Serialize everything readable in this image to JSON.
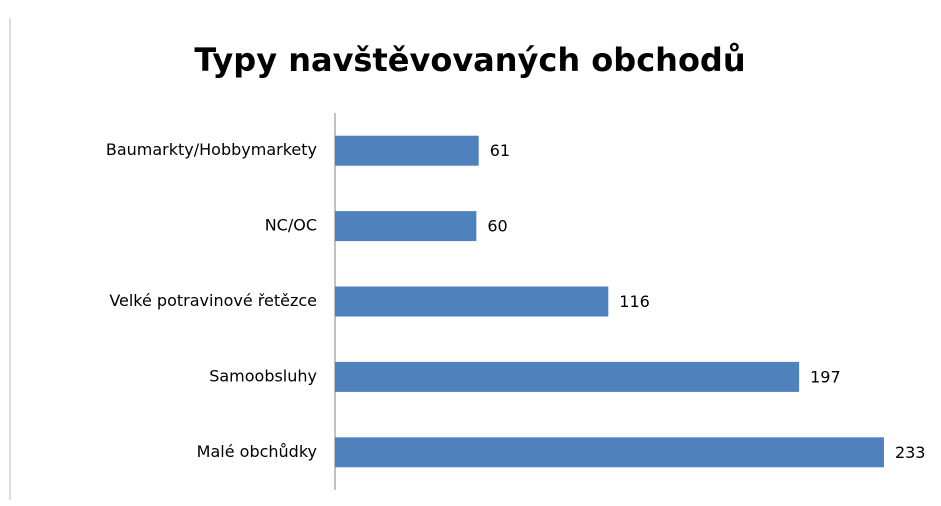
{
  "chart_data": {
    "type": "bar",
    "orientation": "horizontal",
    "title": "Typy navštěvovaných obchodů",
    "categories": [
      "Baumarkty/Hobbymarkety",
      "NC/OC",
      "Velké potravinové řetězce",
      "Samoobsluhy",
      "Malé obchůdky"
    ],
    "values": [
      61,
      60,
      116,
      197,
      233
    ],
    "color": "#4f81bd"
  }
}
